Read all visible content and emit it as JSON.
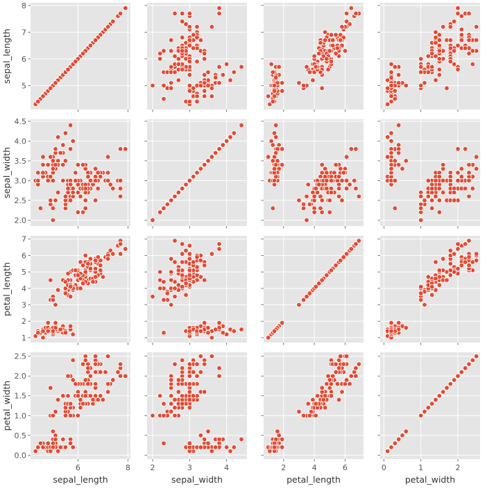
{
  "chart_data": {
    "type": "scatter",
    "kind": "pairplot",
    "style": "ggplot",
    "marker_color": "#e24a33",
    "background_color": "#e5e5e5",
    "grid": true,
    "variables": [
      "sepal_length",
      "sepal_width",
      "petal_length",
      "petal_width"
    ],
    "axes": [
      {
        "name": "sepal_length",
        "lim": [
          4.1,
          8.1
        ],
        "ticks": [
          5,
          6,
          7,
          8
        ],
        "tick_labels": [
          "5",
          "6",
          "7",
          "8"
        ],
        "xticks": [
          6,
          8
        ],
        "xtick_labels": [
          "6",
          "8"
        ]
      },
      {
        "name": "sepal_width",
        "lim": [
          1.85,
          4.55
        ],
        "ticks": [
          2.0,
          2.5,
          3.0,
          3.5,
          4.0,
          4.5
        ],
        "tick_labels": [
          "2.0",
          "2.5",
          "3.0",
          "3.5",
          "4.0",
          "4.5"
        ],
        "xticks": [
          2,
          3,
          4
        ],
        "xtick_labels": [
          "2",
          "3",
          "4"
        ]
      },
      {
        "name": "petal_length",
        "lim": [
          0.7,
          7.2
        ],
        "ticks": [
          1,
          2,
          3,
          4,
          5,
          6,
          7
        ],
        "tick_labels": [
          "1",
          "2",
          "3",
          "4",
          "5",
          "6",
          "7"
        ],
        "xticks": [
          2,
          4,
          6
        ],
        "xtick_labels": [
          "2",
          "4",
          "6"
        ]
      },
      {
        "name": "petal_width",
        "lim": [
          -0.1,
          2.6
        ],
        "ticks": [
          0.0,
          0.5,
          1.0,
          1.5,
          2.0,
          2.5
        ],
        "tick_labels": [
          "0.0",
          "0.5",
          "1.0",
          "1.5",
          "2.0",
          "2.5"
        ],
        "xticks": [
          0,
          1,
          2
        ],
        "xtick_labels": [
          "0",
          "1",
          "2"
        ]
      }
    ],
    "columns": [
      "sepal_length",
      "sepal_width",
      "petal_length",
      "petal_width"
    ],
    "observations": [
      [
        5.1,
        3.5,
        1.4,
        0.2
      ],
      [
        4.9,
        3.0,
        1.4,
        0.2
      ],
      [
        4.7,
        3.2,
        1.3,
        0.2
      ],
      [
        4.6,
        3.1,
        1.5,
        0.2
      ],
      [
        5.0,
        3.6,
        1.4,
        0.2
      ],
      [
        5.4,
        3.9,
        1.7,
        0.4
      ],
      [
        4.6,
        3.4,
        1.4,
        0.3
      ],
      [
        5.0,
        3.4,
        1.5,
        0.2
      ],
      [
        4.4,
        2.9,
        1.4,
        0.2
      ],
      [
        4.9,
        3.1,
        1.5,
        0.1
      ],
      [
        5.4,
        3.7,
        1.5,
        0.2
      ],
      [
        4.8,
        3.4,
        1.6,
        0.2
      ],
      [
        4.8,
        3.0,
        1.4,
        0.1
      ],
      [
        4.3,
        3.0,
        1.1,
        0.1
      ],
      [
        5.8,
        4.0,
        1.2,
        0.2
      ],
      [
        5.7,
        4.4,
        1.5,
        0.4
      ],
      [
        5.4,
        3.9,
        1.3,
        0.4
      ],
      [
        5.1,
        3.5,
        1.4,
        0.3
      ],
      [
        5.7,
        3.8,
        1.7,
        0.3
      ],
      [
        5.1,
        3.8,
        1.5,
        0.3
      ],
      [
        5.4,
        3.4,
        1.7,
        0.2
      ],
      [
        5.1,
        3.7,
        1.5,
        0.4
      ],
      [
        4.6,
        3.6,
        1.0,
        0.2
      ],
      [
        5.1,
        3.3,
        1.7,
        0.5
      ],
      [
        4.8,
        3.4,
        1.9,
        0.2
      ],
      [
        5.0,
        3.0,
        1.6,
        0.2
      ],
      [
        5.0,
        3.4,
        1.6,
        0.4
      ],
      [
        5.2,
        3.5,
        1.5,
        0.2
      ],
      [
        5.2,
        3.4,
        1.4,
        0.2
      ],
      [
        4.7,
        3.2,
        1.6,
        0.2
      ],
      [
        4.8,
        3.1,
        1.6,
        0.2
      ],
      [
        5.4,
        3.4,
        1.5,
        0.4
      ],
      [
        5.2,
        4.1,
        1.5,
        0.1
      ],
      [
        5.5,
        4.2,
        1.4,
        0.2
      ],
      [
        4.9,
        3.1,
        1.5,
        0.2
      ],
      [
        5.0,
        3.2,
        1.2,
        0.2
      ],
      [
        5.5,
        3.5,
        1.3,
        0.2
      ],
      [
        4.9,
        3.6,
        1.4,
        0.1
      ],
      [
        4.4,
        3.0,
        1.3,
        0.2
      ],
      [
        5.1,
        3.4,
        1.5,
        0.2
      ],
      [
        5.0,
        3.5,
        1.3,
        0.3
      ],
      [
        4.5,
        2.3,
        1.3,
        0.3
      ],
      [
        4.4,
        3.2,
        1.3,
        0.2
      ],
      [
        5.0,
        3.5,
        1.6,
        0.6
      ],
      [
        5.1,
        3.8,
        1.9,
        0.4
      ],
      [
        4.8,
        3.0,
        1.4,
        0.3
      ],
      [
        5.1,
        3.8,
        1.6,
        0.2
      ],
      [
        4.6,
        3.2,
        1.4,
        0.2
      ],
      [
        5.3,
        3.7,
        1.5,
        0.2
      ],
      [
        5.0,
        3.3,
        1.4,
        0.2
      ],
      [
        7.0,
        3.2,
        4.7,
        1.4
      ],
      [
        6.4,
        3.2,
        4.5,
        1.5
      ],
      [
        6.9,
        3.1,
        4.9,
        1.5
      ],
      [
        5.5,
        2.3,
        4.0,
        1.3
      ],
      [
        6.5,
        2.8,
        4.6,
        1.5
      ],
      [
        5.7,
        2.8,
        4.5,
        1.3
      ],
      [
        6.3,
        3.3,
        4.7,
        1.6
      ],
      [
        4.9,
        2.4,
        3.3,
        1.0
      ],
      [
        6.6,
        2.9,
        4.6,
        1.3
      ],
      [
        5.2,
        2.7,
        3.9,
        1.4
      ],
      [
        5.0,
        2.0,
        3.5,
        1.0
      ],
      [
        5.9,
        3.0,
        4.2,
        1.5
      ],
      [
        6.0,
        2.2,
        4.0,
        1.0
      ],
      [
        6.1,
        2.9,
        4.7,
        1.4
      ],
      [
        5.6,
        2.9,
        3.6,
        1.3
      ],
      [
        6.7,
        3.1,
        4.4,
        1.4
      ],
      [
        5.6,
        3.0,
        4.5,
        1.5
      ],
      [
        5.8,
        2.7,
        4.1,
        1.0
      ],
      [
        6.2,
        2.2,
        4.5,
        1.5
      ],
      [
        5.6,
        2.5,
        3.9,
        1.1
      ],
      [
        5.9,
        3.2,
        4.8,
        1.8
      ],
      [
        6.1,
        2.8,
        4.0,
        1.3
      ],
      [
        6.3,
        2.5,
        4.9,
        1.5
      ],
      [
        6.1,
        2.8,
        4.7,
        1.2
      ],
      [
        6.4,
        2.9,
        4.3,
        1.3
      ],
      [
        6.6,
        3.0,
        4.4,
        1.4
      ],
      [
        6.8,
        2.8,
        4.8,
        1.4
      ],
      [
        6.7,
        3.0,
        5.0,
        1.7
      ],
      [
        6.0,
        2.9,
        4.5,
        1.5
      ],
      [
        5.7,
        2.6,
        3.5,
        1.0
      ],
      [
        5.5,
        2.4,
        3.8,
        1.1
      ],
      [
        5.5,
        2.4,
        3.7,
        1.0
      ],
      [
        5.8,
        2.7,
        3.9,
        1.2
      ],
      [
        6.0,
        2.7,
        5.1,
        1.6
      ],
      [
        5.4,
        3.0,
        4.5,
        1.5
      ],
      [
        6.0,
        3.4,
        4.5,
        1.6
      ],
      [
        6.7,
        3.1,
        4.7,
        1.5
      ],
      [
        6.3,
        2.3,
        4.4,
        1.3
      ],
      [
        5.6,
        3.0,
        4.1,
        1.3
      ],
      [
        5.5,
        2.5,
        4.0,
        1.3
      ],
      [
        5.5,
        2.6,
        4.4,
        1.2
      ],
      [
        6.1,
        3.0,
        4.6,
        1.4
      ],
      [
        5.8,
        2.6,
        4.0,
        1.2
      ],
      [
        5.0,
        2.3,
        3.3,
        1.0
      ],
      [
        5.6,
        2.7,
        4.2,
        1.3
      ],
      [
        5.7,
        3.0,
        4.2,
        1.2
      ],
      [
        5.7,
        2.9,
        4.2,
        1.3
      ],
      [
        6.2,
        2.9,
        4.3,
        1.3
      ],
      [
        5.1,
        2.5,
        3.0,
        1.1
      ],
      [
        5.7,
        2.8,
        4.1,
        1.3
      ],
      [
        6.3,
        3.3,
        6.0,
        2.5
      ],
      [
        5.8,
        2.7,
        5.1,
        1.9
      ],
      [
        7.1,
        3.0,
        5.9,
        2.1
      ],
      [
        6.3,
        2.9,
        5.6,
        1.8
      ],
      [
        6.5,
        3.0,
        5.8,
        2.2
      ],
      [
        7.6,
        3.0,
        6.6,
        2.1
      ],
      [
        4.9,
        2.5,
        4.5,
        1.7
      ],
      [
        7.3,
        2.9,
        6.3,
        1.8
      ],
      [
        6.7,
        2.5,
        5.8,
        1.8
      ],
      [
        7.2,
        3.6,
        6.1,
        2.5
      ],
      [
        6.5,
        3.2,
        5.1,
        2.0
      ],
      [
        6.4,
        2.7,
        5.3,
        1.9
      ],
      [
        6.8,
        3.0,
        5.5,
        2.1
      ],
      [
        5.7,
        2.5,
        5.0,
        2.0
      ],
      [
        5.8,
        2.8,
        5.1,
        2.4
      ],
      [
        6.4,
        3.2,
        5.3,
        2.3
      ],
      [
        6.5,
        3.0,
        5.5,
        1.8
      ],
      [
        7.7,
        3.8,
        6.7,
        2.2
      ],
      [
        7.7,
        2.6,
        6.9,
        2.3
      ],
      [
        6.0,
        2.2,
        5.0,
        1.5
      ],
      [
        6.9,
        3.2,
        5.7,
        2.3
      ],
      [
        5.6,
        2.8,
        4.9,
        2.0
      ],
      [
        7.7,
        2.8,
        6.7,
        2.0
      ],
      [
        6.3,
        2.7,
        4.9,
        1.8
      ],
      [
        6.7,
        3.3,
        5.7,
        2.1
      ],
      [
        7.2,
        3.2,
        6.0,
        1.8
      ],
      [
        6.2,
        2.8,
        4.8,
        1.8
      ],
      [
        6.1,
        3.0,
        4.9,
        1.8
      ],
      [
        6.4,
        2.8,
        5.6,
        2.1
      ],
      [
        7.2,
        3.0,
        5.8,
        1.6
      ],
      [
        7.4,
        2.8,
        6.1,
        1.9
      ],
      [
        7.9,
        3.8,
        6.4,
        2.0
      ],
      [
        6.4,
        2.8,
        5.6,
        2.2
      ],
      [
        6.3,
        2.8,
        5.1,
        1.5
      ],
      [
        6.1,
        2.6,
        5.6,
        1.4
      ],
      [
        7.7,
        3.0,
        6.1,
        2.3
      ],
      [
        6.3,
        3.4,
        5.6,
        2.4
      ],
      [
        6.4,
        3.1,
        5.5,
        1.8
      ],
      [
        6.0,
        3.0,
        4.8,
        1.8
      ],
      [
        6.9,
        3.1,
        5.4,
        2.1
      ],
      [
        6.7,
        3.1,
        5.6,
        2.4
      ],
      [
        6.9,
        3.1,
        5.1,
        2.3
      ],
      [
        5.8,
        2.7,
        5.1,
        1.9
      ],
      [
        6.8,
        3.2,
        5.9,
        2.3
      ],
      [
        6.7,
        3.3,
        5.7,
        2.5
      ],
      [
        6.7,
        3.0,
        5.2,
        2.3
      ],
      [
        6.3,
        2.5,
        5.0,
        1.9
      ],
      [
        6.5,
        3.0,
        5.2,
        2.0
      ],
      [
        6.2,
        3.4,
        5.4,
        2.3
      ],
      [
        5.9,
        3.0,
        5.1,
        1.8
      ]
    ]
  }
}
